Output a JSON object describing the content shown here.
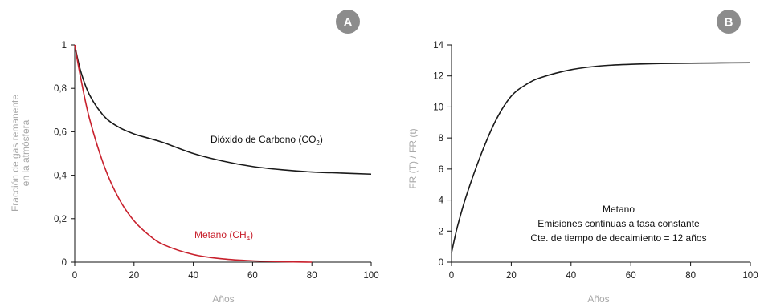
{
  "colors": {
    "co2": "#1a1a1a",
    "ch4": "#c8202c",
    "axis_label": "#a8a8a8",
    "badge": "#8c8c8c"
  },
  "chart_data": [
    {
      "panel": "A",
      "type": "line",
      "xlabel": "Años",
      "ylabel_lines": [
        "Fracción de gas remanente",
        "en la atmósfera"
      ],
      "xlim": [
        0,
        100
      ],
      "ylim": [
        0,
        1
      ],
      "xticks": [
        "0",
        "20",
        "40",
        "60",
        "80",
        "100"
      ],
      "yticks": [
        "0",
        "0,2",
        "0,4",
        "0,6",
        "0,8",
        "1"
      ],
      "grid": false,
      "series": [
        {
          "name": "Dióxido de Carbono (CO₂)",
          "label_main": "Dióxido de Carbono (CO",
          "label_sub": "2",
          "label_end": ")",
          "color": "#1a1a1a",
          "x": [
            0,
            2,
            5,
            10,
            15,
            20,
            25,
            30,
            40,
            50,
            60,
            70,
            80,
            90,
            100
          ],
          "y": [
            1.0,
            0.88,
            0.77,
            0.67,
            0.62,
            0.59,
            0.57,
            0.55,
            0.5,
            0.465,
            0.44,
            0.425,
            0.415,
            0.41,
            0.405
          ]
        },
        {
          "name": "Metano (CH₄)",
          "label_main": "Metano (CH",
          "label_sub": "4",
          "label_end": ")",
          "color": "#c8202c",
          "x": [
            0,
            2,
            5,
            10,
            15,
            20,
            25,
            30,
            40,
            50,
            60,
            70,
            80
          ],
          "y": [
            1.0,
            0.85,
            0.66,
            0.44,
            0.29,
            0.19,
            0.125,
            0.08,
            0.035,
            0.015,
            0.006,
            0.002,
            0.0
          ]
        }
      ]
    },
    {
      "panel": "B",
      "type": "line",
      "xlabel": "Años",
      "ylabel": "FR (T) / FR (t)",
      "xlim": [
        0,
        100
      ],
      "ylim": [
        0,
        14
      ],
      "xticks": [
        "0",
        "20",
        "40",
        "60",
        "80",
        "100"
      ],
      "yticks": [
        "0",
        "2",
        "4",
        "6",
        "8",
        "10",
        "12",
        "14"
      ],
      "grid": false,
      "annotation": [
        "Metano",
        "Emisiones continuas a tasa constante",
        "Cte. de tiempo de decaimiento = 12 años"
      ],
      "series": [
        {
          "color": "#1a1a1a",
          "x": [
            0,
            2,
            5,
            10,
            15,
            20,
            25,
            30,
            40,
            50,
            60,
            70,
            80,
            90,
            100
          ],
          "y": [
            0.6,
            2.3,
            4.3,
            7.0,
            9.2,
            10.7,
            11.45,
            11.9,
            12.4,
            12.65,
            12.75,
            12.8,
            12.82,
            12.84,
            12.85
          ]
        }
      ]
    }
  ]
}
